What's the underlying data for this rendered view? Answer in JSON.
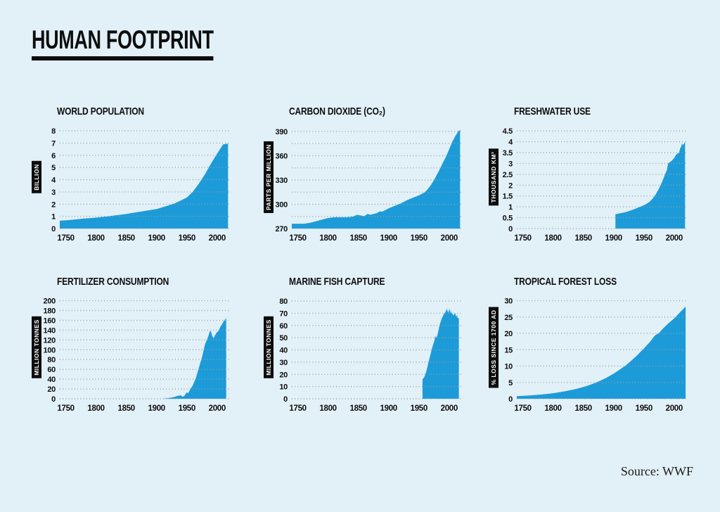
{
  "page": {
    "title": "HUMAN FOOTPRINT",
    "source": "Source: WWF",
    "colors": {
      "background": "#e2f0f8",
      "area": "#1d9bd8",
      "ink": "#0d0d0d",
      "grid_dots": "#93a2ab",
      "ylabel_box": "#0d0d0d",
      "ylabel_text": "#ffffff"
    }
  },
  "chart_data": [
    {
      "type": "area",
      "title": "WORLD POPULATION",
      "ylabel": "BILLION",
      "xlim": [
        1740,
        2020
      ],
      "ylim": [
        0,
        8.35
      ],
      "xticks": [
        1750,
        1800,
        1850,
        1900,
        1950,
        2000
      ],
      "yticks": [
        0,
        1,
        2,
        3,
        4,
        5,
        6,
        7,
        8
      ],
      "gridlines": [
        0,
        1,
        2,
        3,
        4,
        5,
        6,
        7,
        8
      ],
      "points": [
        [
          1740,
          0.64
        ],
        [
          1750,
          0.68
        ],
        [
          1760,
          0.72
        ],
        [
          1770,
          0.77
        ],
        [
          1780,
          0.82
        ],
        [
          1790,
          0.86
        ],
        [
          1800,
          0.9
        ],
        [
          1810,
          0.95
        ],
        [
          1820,
          1.0
        ],
        [
          1830,
          1.07
        ],
        [
          1840,
          1.13
        ],
        [
          1850,
          1.2
        ],
        [
          1860,
          1.28
        ],
        [
          1870,
          1.36
        ],
        [
          1880,
          1.44
        ],
        [
          1890,
          1.52
        ],
        [
          1900,
          1.6
        ],
        [
          1910,
          1.75
        ],
        [
          1920,
          1.9
        ],
        [
          1930,
          2.07
        ],
        [
          1940,
          2.3
        ],
        [
          1950,
          2.55
        ],
        [
          1960,
          3.03
        ],
        [
          1970,
          3.7
        ],
        [
          1980,
          4.46
        ],
        [
          1990,
          5.33
        ],
        [
          2000,
          6.14
        ],
        [
          2010,
          6.9
        ],
        [
          2018,
          6.95
        ]
      ]
    },
    {
      "type": "area",
      "title": "CARBON DIOXIDE (CO₂)",
      "ylabel": "PARTS PER MILLION",
      "xlim": [
        1740,
        2020
      ],
      "ylim": [
        270,
        396
      ],
      "xticks": [
        1750,
        1800,
        1850,
        1900,
        1950,
        2000
      ],
      "yticks": [
        270,
        300,
        330,
        360,
        390
      ],
      "gridlines": [
        270,
        285,
        300,
        315,
        330,
        345,
        360,
        375,
        390
      ],
      "points": [
        [
          1740,
          276
        ],
        [
          1760,
          276
        ],
        [
          1770,
          277
        ],
        [
          1780,
          279
        ],
        [
          1790,
          281
        ],
        [
          1800,
          283
        ],
        [
          1810,
          284
        ],
        [
          1820,
          284
        ],
        [
          1830,
          284
        ],
        [
          1840,
          284.5
        ],
        [
          1848,
          287
        ],
        [
          1855,
          286
        ],
        [
          1860,
          285.5
        ],
        [
          1865,
          288
        ],
        [
          1870,
          287
        ],
        [
          1875,
          288
        ],
        [
          1880,
          289
        ],
        [
          1885,
          291
        ],
        [
          1890,
          291
        ],
        [
          1895,
          293
        ],
        [
          1900,
          295
        ],
        [
          1910,
          298
        ],
        [
          1920,
          301
        ],
        [
          1930,
          305
        ],
        [
          1940,
          308
        ],
        [
          1950,
          311
        ],
        [
          1955,
          313
        ],
        [
          1960,
          315
        ],
        [
          1965,
          319
        ],
        [
          1970,
          324
        ],
        [
          1975,
          330
        ],
        [
          1980,
          337
        ],
        [
          1985,
          344
        ],
        [
          1990,
          352
        ],
        [
          1995,
          359
        ],
        [
          2000,
          368
        ],
        [
          2005,
          377
        ],
        [
          2010,
          384
        ],
        [
          2015,
          390
        ],
        [
          2018,
          392
        ]
      ]
    },
    {
      "type": "area",
      "title": "FRESHWATER USE",
      "ylabel": "THOUSAND KM³",
      "xlim": [
        1740,
        2020
      ],
      "ylim": [
        0,
        4.7
      ],
      "xticks": [
        1750,
        1800,
        1850,
        1900,
        1950,
        2000
      ],
      "yticks": [
        0,
        0.5,
        1,
        1.5,
        2,
        2.5,
        3,
        3.5,
        4,
        4.5
      ],
      "gridlines": [
        0,
        0.5,
        1,
        1.5,
        2,
        2.5,
        3,
        3.5,
        4,
        4.5
      ],
      "points": [
        [
          1903,
          0.66
        ],
        [
          1910,
          0.7
        ],
        [
          1920,
          0.76
        ],
        [
          1930,
          0.85
        ],
        [
          1940,
          0.96
        ],
        [
          1950,
          1.08
        ],
        [
          1955,
          1.15
        ],
        [
          1960,
          1.25
        ],
        [
          1965,
          1.4
        ],
        [
          1970,
          1.6
        ],
        [
          1975,
          1.85
        ],
        [
          1980,
          2.15
        ],
        [
          1985,
          2.5
        ],
        [
          1988,
          2.7
        ],
        [
          1990,
          3.0
        ],
        [
          1992,
          3.05
        ],
        [
          1995,
          3.1
        ],
        [
          2000,
          3.25
        ],
        [
          2003,
          3.4
        ],
        [
          2005,
          3.45
        ],
        [
          2008,
          3.5
        ],
        [
          2010,
          3.7
        ],
        [
          2012,
          3.8
        ],
        [
          2013,
          3.95
        ],
        [
          2014,
          3.85
        ],
        [
          2016,
          3.9
        ],
        [
          2018,
          4.0
        ]
      ]
    },
    {
      "type": "area",
      "title": "FERTILIZER CONSUMPTION",
      "ylabel": "MILLION TONNES",
      "xlim": [
        1740,
        2020
      ],
      "ylim": [
        0,
        208
      ],
      "xticks": [
        1750,
        1800,
        1850,
        1900,
        1950,
        2000
      ],
      "yticks": [
        0,
        20,
        40,
        60,
        80,
        100,
        120,
        140,
        160,
        180,
        200
      ],
      "gridlines": [
        0,
        20,
        40,
        60,
        80,
        100,
        120,
        140,
        160,
        180,
        200
      ],
      "points": [
        [
          1912,
          0.5
        ],
        [
          1920,
          1.5
        ],
        [
          1925,
          2.5
        ],
        [
          1930,
          4
        ],
        [
          1935,
          6
        ],
        [
          1940,
          7
        ],
        [
          1943,
          4
        ],
        [
          1946,
          6
        ],
        [
          1948,
          10
        ],
        [
          1950,
          13
        ],
        [
          1952,
          11
        ],
        [
          1955,
          18
        ],
        [
          1960,
          28
        ],
        [
          1965,
          43
        ],
        [
          1970,
          64
        ],
        [
          1975,
          85
        ],
        [
          1980,
          111
        ],
        [
          1985,
          126
        ],
        [
          1988,
          138
        ],
        [
          1990,
          137
        ],
        [
          1992,
          128
        ],
        [
          1994,
          123
        ],
        [
          1996,
          128
        ],
        [
          1998,
          133
        ],
        [
          2000,
          136
        ],
        [
          2002,
          138
        ],
        [
          2005,
          146
        ],
        [
          2008,
          152
        ],
        [
          2010,
          156
        ],
        [
          2011,
          160
        ],
        [
          2012,
          158
        ],
        [
          2013,
          163
        ],
        [
          2014,
          161
        ],
        [
          2015,
          166
        ]
      ]
    },
    {
      "type": "area",
      "title": "MARINE FISH CAPTURE",
      "ylabel": "MILLION TONNES",
      "xlim": [
        1740,
        2020
      ],
      "ylim": [
        0,
        83.5
      ],
      "xticks": [
        1750,
        1800,
        1850,
        1900,
        1950,
        2000
      ],
      "yticks": [
        0,
        10,
        20,
        30,
        40,
        50,
        60,
        70,
        80
      ],
      "gridlines": [
        0,
        10,
        20,
        30,
        40,
        50,
        60,
        70,
        80
      ],
      "points": [
        [
          1956,
          16
        ],
        [
          1958,
          17
        ],
        [
          1960,
          19
        ],
        [
          1962,
          22
        ],
        [
          1964,
          26
        ],
        [
          1966,
          30
        ],
        [
          1968,
          34
        ],
        [
          1970,
          38
        ],
        [
          1972,
          42
        ],
        [
          1974,
          45
        ],
        [
          1976,
          48
        ],
        [
          1977,
          52
        ],
        [
          1978,
          50
        ],
        [
          1980,
          51
        ],
        [
          1982,
          55
        ],
        [
          1984,
          60
        ],
        [
          1986,
          63
        ],
        [
          1988,
          66
        ],
        [
          1990,
          68
        ],
        [
          1992,
          70
        ],
        [
          1994,
          71
        ],
        [
          1996,
          74
        ],
        [
          1997,
          71
        ],
        [
          1998,
          73
        ],
        [
          1999,
          70
        ],
        [
          2000,
          72
        ],
        [
          2001,
          74
        ],
        [
          2002,
          71
        ],
        [
          2003,
          70
        ],
        [
          2004,
          72
        ],
        [
          2005,
          69
        ],
        [
          2006,
          70
        ],
        [
          2007,
          68
        ],
        [
          2008,
          69
        ],
        [
          2010,
          70
        ],
        [
          2011,
          68
        ],
        [
          2012,
          67
        ],
        [
          2013,
          69
        ],
        [
          2014,
          66
        ],
        [
          2016,
          66
        ]
      ]
    },
    {
      "type": "area",
      "title": "TROPICAL FOREST LOSS",
      "ylabel": "% LOSS SINCE 1700 AD",
      "xlim": [
        1740,
        2020
      ],
      "ylim": [
        0,
        31.2
      ],
      "xticks": [
        1750,
        1800,
        1850,
        1900,
        1950,
        2000
      ],
      "yticks": [
        0,
        5,
        10,
        15,
        20,
        25,
        30
      ],
      "gridlines": [
        0,
        5,
        10,
        15,
        20,
        25,
        30
      ],
      "points": [
        [
          1740,
          0.8
        ],
        [
          1760,
          1.0
        ],
        [
          1780,
          1.3
        ],
        [
          1800,
          1.7
        ],
        [
          1810,
          2.0
        ],
        [
          1820,
          2.3
        ],
        [
          1830,
          2.7
        ],
        [
          1840,
          3.1
        ],
        [
          1850,
          3.6
        ],
        [
          1860,
          4.2
        ],
        [
          1870,
          4.9
        ],
        [
          1880,
          5.7
        ],
        [
          1890,
          6.6
        ],
        [
          1900,
          7.7
        ],
        [
          1910,
          8.9
        ],
        [
          1920,
          10.2
        ],
        [
          1930,
          11.8
        ],
        [
          1940,
          13.5
        ],
        [
          1950,
          15.4
        ],
        [
          1960,
          17.4
        ],
        [
          1968,
          19.3
        ],
        [
          1972,
          19.8
        ],
        [
          1976,
          20.3
        ],
        [
          1980,
          21.2
        ],
        [
          1990,
          23.0
        ],
        [
          2000,
          24.6
        ],
        [
          2010,
          26.5
        ],
        [
          2019,
          28.2
        ]
      ]
    }
  ]
}
